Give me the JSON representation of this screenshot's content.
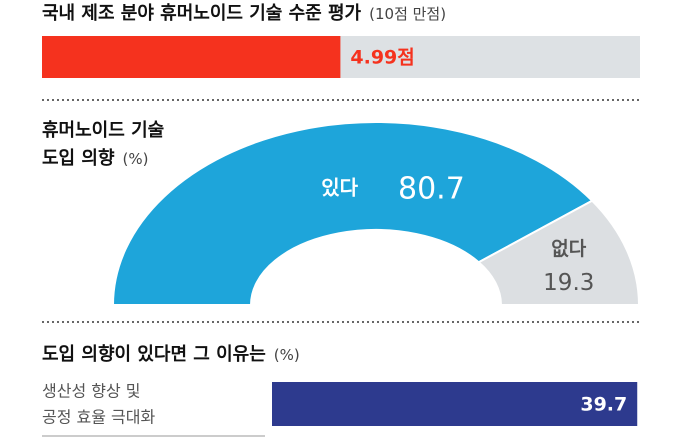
{
  "chart_data": [
    {
      "type": "bar",
      "orientation": "horizontal",
      "title": "국내 제조 분야 휴머노이드 기술 수준 평가",
      "subtitle": "(10점 만점)",
      "values": [
        4.99
      ],
      "value_labels": [
        "4.99점"
      ],
      "xlim": [
        0,
        10
      ],
      "color": "#f5321e",
      "track_color": "#dde1e4"
    },
    {
      "type": "half-donut",
      "title": [
        "휴머노이드 기술",
        "도입 의향"
      ],
      "subtitle": "(%)",
      "categories": [
        "있다",
        "없다"
      ],
      "values": [
        80.7,
        19.3
      ],
      "colors": [
        "#1ea5da",
        "#dcdfe2"
      ]
    },
    {
      "type": "bar",
      "orientation": "horizontal",
      "title": "도입 의향이 있다면 그 이유는",
      "subtitle": "(%)",
      "categories": [
        [
          "생산성 향상 및",
          "공정 효율 극대화"
        ]
      ],
      "values": [
        39.7
      ],
      "xlim": [
        0,
        40
      ],
      "color": "#2d3a8e"
    }
  ]
}
